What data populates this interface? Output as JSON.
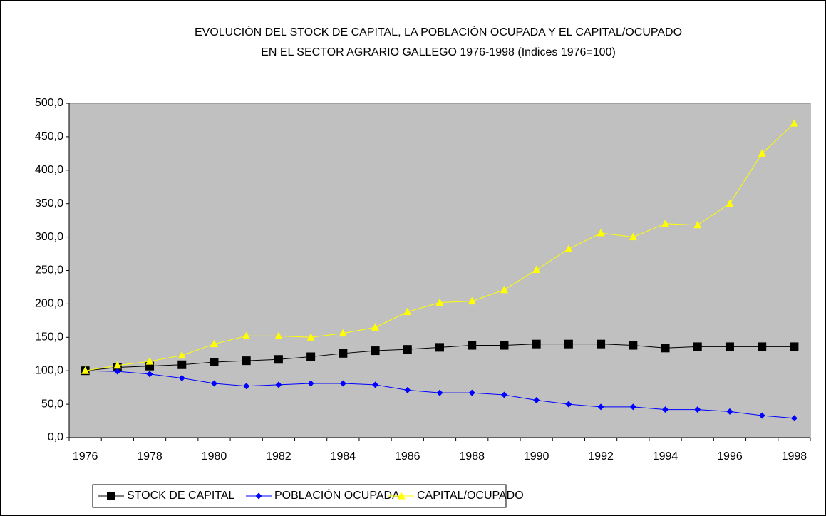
{
  "chart_data": {
    "type": "line",
    "title": [
      "EVOLUCIÓN DEL STOCK DE CAPITAL, LA POBLACIÓN OCUPADA Y EL  CAPITAL/OCUPADO",
      "EN EL SECTOR AGRARIO GALLEGO  1976-1998   (Indices 1976=100)"
    ],
    "categories": [
      "1976",
      null,
      "1978",
      null,
      "1980",
      null,
      "1982",
      null,
      "1984",
      null,
      "1986",
      null,
      "1988",
      null,
      "1990",
      null,
      "1992",
      null,
      "1994",
      null,
      "1996",
      null,
      "1998"
    ],
    "series": [
      {
        "name": "STOCK DE CAPITAL",
        "color": "#000000",
        "marker": "square",
        "values": [
          100,
          105,
          107,
          109,
          113,
          115,
          117,
          121,
          126,
          130,
          132,
          135,
          138,
          138,
          140,
          140,
          140,
          138,
          134,
          136,
          136,
          136,
          136
        ]
      },
      {
        "name": "POBLACIÓN OCUPADA",
        "color": "#0000ff",
        "marker": "diamond",
        "values": [
          100,
          99,
          95,
          89,
          81,
          77,
          79,
          81,
          81,
          79,
          71,
          67,
          67,
          64,
          56,
          50,
          46,
          46,
          42,
          42,
          39,
          33,
          29
        ]
      },
      {
        "name": "CAPITAL/OCUPADO",
        "color": "#ffff00",
        "marker": "triangle",
        "values": [
          100,
          108,
          114,
          123,
          140,
          152,
          152,
          150,
          156,
          165,
          188,
          202,
          204,
          221,
          251,
          282,
          306,
          300,
          320,
          318,
          350,
          425,
          470
        ]
      }
    ],
    "ylim": [
      0,
      500
    ],
    "yticks": [
      {
        "value": 0,
        "label": "0,0"
      },
      {
        "value": 50,
        "label": "50,0"
      },
      {
        "value": 100,
        "label": "100,0"
      },
      {
        "value": 150,
        "label": "150,0"
      },
      {
        "value": 200,
        "label": "200,0"
      },
      {
        "value": 250,
        "label": "250,0"
      },
      {
        "value": 300,
        "label": "300,0"
      },
      {
        "value": 350,
        "label": "350,0"
      },
      {
        "value": 400,
        "label": "400,0"
      },
      {
        "value": 450,
        "label": "450,0"
      },
      {
        "value": 500,
        "label": "500,0"
      }
    ],
    "plot_background": "#c0c0c0",
    "legend": "bottom"
  }
}
